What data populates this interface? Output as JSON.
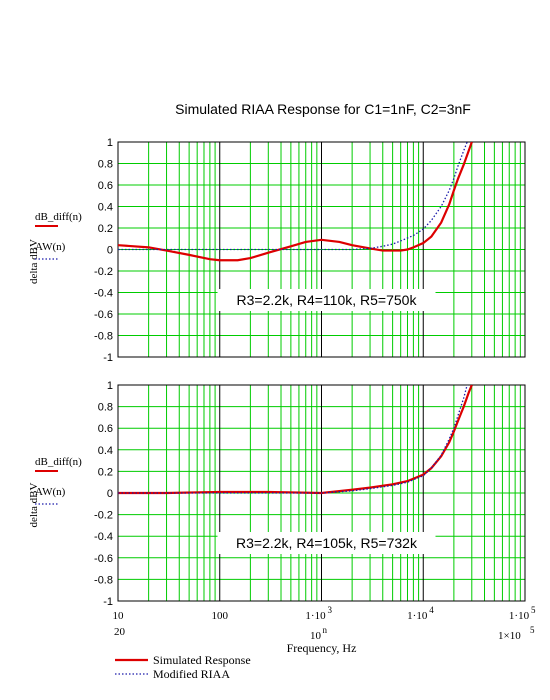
{
  "title": "Simulated RIAA Response for C1=1nF, C2=3nF",
  "colors": {
    "grid_minor": "#00cc00",
    "grid_major": "#000000",
    "simulated": "#dd0000",
    "modified": "#1a1aaa",
    "legend_line_simulated": "#dd0000",
    "legend_line_modified": "#1a1aaa"
  },
  "chart_data": [
    {
      "type": "line",
      "panel": "top",
      "ylabel": "delta dBV",
      "ylim": [
        -1,
        1
      ],
      "yticks": [
        "1",
        "0.8",
        "0.6",
        "0.4",
        "0.2",
        "0",
        "-0.2",
        "-0.4",
        "-0.6",
        "-0.8",
        "-1"
      ],
      "xlim": [
        10,
        100000
      ],
      "xscale": "log",
      "grid": true,
      "legend": {
        "placement": "left",
        "entries": [
          "dB_diff(n)",
          "AW(n)"
        ]
      },
      "annotation": "R3=2.2k, R4=110k, R5=750k",
      "series": [
        {
          "name": "dB_diff(n)",
          "style": "solid",
          "x": [
            10,
            20,
            30,
            50,
            80,
            100,
            150,
            200,
            300,
            500,
            700,
            1000,
            1500,
            2000,
            3000,
            4000,
            5000,
            6000,
            7000,
            8000,
            10000,
            12000,
            15000,
            18000,
            20000,
            22000,
            25000,
            28000,
            30000
          ],
          "y": [
            0.04,
            0.02,
            -0.01,
            -0.05,
            -0.09,
            -0.1,
            -0.1,
            -0.08,
            -0.03,
            0.03,
            0.07,
            0.09,
            0.07,
            0.04,
            0.01,
            -0.01,
            -0.01,
            -0.01,
            0.0,
            0.02,
            0.06,
            0.12,
            0.25,
            0.42,
            0.55,
            0.66,
            0.79,
            0.92,
            1.0
          ]
        },
        {
          "name": "AW(n)",
          "style": "dotted",
          "x": [
            10,
            20,
            50,
            100,
            200,
            500,
            1000,
            2000,
            3000,
            4000,
            5000,
            6000,
            8000,
            10000,
            12000,
            15000,
            18000,
            20000,
            22000,
            25000,
            27000
          ],
          "y": [
            0.0,
            0.0,
            0.0,
            0.0,
            0.0,
            0.0,
            0.0,
            0.0,
            0.01,
            0.03,
            0.05,
            0.08,
            0.13,
            0.19,
            0.27,
            0.4,
            0.55,
            0.66,
            0.78,
            0.92,
            1.0
          ]
        }
      ]
    },
    {
      "type": "line",
      "panel": "bottom",
      "ylabel": "delta dBV",
      "ylim": [
        -1,
        1
      ],
      "yticks": [
        "1",
        "0.8",
        "0.6",
        "0.4",
        "0.2",
        "0",
        "-0.2",
        "-0.4",
        "-0.6",
        "-0.8",
        "-1"
      ],
      "xlim": [
        10,
        100000
      ],
      "xscale": "log",
      "xlabel": "Frequency, Hz",
      "grid": true,
      "legend": {
        "placement": "left",
        "entries": [
          "dB_diff(n)",
          "AW(n)"
        ]
      },
      "annotation": "R3=2.2k, R4=105k, R5=732k",
      "xticks": [
        {
          "value": 10,
          "label": "10"
        },
        {
          "value": 100,
          "label": "100"
        },
        {
          "value": 1000,
          "label": "1·10",
          "exp": "3"
        },
        {
          "value": 10000,
          "label": "1·10",
          "exp": "4"
        },
        {
          "value": 100000,
          "label": "1·10",
          "exp": "5"
        }
      ],
      "range_labels": {
        "left": "20",
        "middle_base": "10",
        "middle_exp": "n",
        "right": "1×10",
        "right_exp": "5"
      },
      "series": [
        {
          "name": "dB_diff(n)",
          "style": "solid",
          "x": [
            10,
            30,
            100,
            300,
            1000,
            2000,
            3000,
            5000,
            7000,
            10000,
            12000,
            15000,
            18000,
            20000,
            22000,
            25000,
            28000,
            30000
          ],
          "y": [
            0.0,
            0.0,
            0.01,
            0.01,
            0.0,
            0.03,
            0.05,
            0.08,
            0.11,
            0.17,
            0.23,
            0.34,
            0.47,
            0.57,
            0.67,
            0.8,
            0.93,
            1.0
          ]
        },
        {
          "name": "AW(n)",
          "style": "dotted",
          "x": [
            10,
            30,
            100,
            300,
            1000,
            2000,
            3000,
            5000,
            7000,
            10000,
            12000,
            15000,
            18000,
            20000,
            22000,
            25000,
            27000
          ],
          "y": [
            0.0,
            0.0,
            0.0,
            0.0,
            0.0,
            0.02,
            0.04,
            0.07,
            0.1,
            0.16,
            0.23,
            0.35,
            0.5,
            0.6,
            0.72,
            0.88,
            1.0
          ]
        }
      ]
    }
  ],
  "bottom_legend": [
    {
      "label": "Simulated Response",
      "style": "solid"
    },
    {
      "label": "Modified RIAA",
      "style": "dotted"
    }
  ]
}
